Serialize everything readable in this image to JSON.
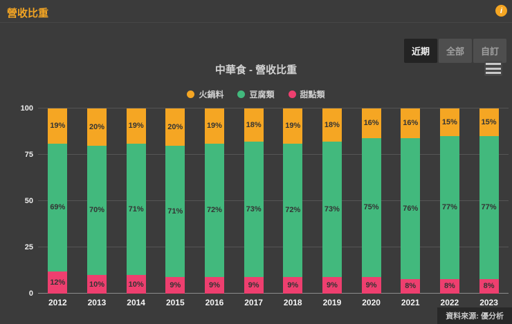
{
  "header": {
    "title": "營收比重",
    "info_glyph": "i"
  },
  "range_buttons": [
    {
      "label": "近期",
      "active": true
    },
    {
      "label": "全部",
      "active": false
    },
    {
      "label": "自訂",
      "active": false
    }
  ],
  "chart_data": {
    "type": "bar",
    "stacked": true,
    "title": "中華食 - 營收比重",
    "categories": [
      "2012",
      "2013",
      "2014",
      "2015",
      "2016",
      "2017",
      "2018",
      "2019",
      "2020",
      "2021",
      "2022",
      "2023"
    ],
    "series": [
      {
        "name": "甜點類",
        "color": "#ee3f6f",
        "values": [
          12,
          10,
          10,
          9,
          9,
          9,
          9,
          9,
          9,
          8,
          8,
          8
        ]
      },
      {
        "name": "豆腐類",
        "color": "#42b97d",
        "values": [
          69,
          70,
          71,
          71,
          72,
          73,
          72,
          73,
          75,
          76,
          77,
          77
        ]
      },
      {
        "name": "火鍋料",
        "color": "#f5a623",
        "values": [
          19,
          20,
          19,
          20,
          19,
          18,
          19,
          18,
          16,
          16,
          15,
          15
        ]
      }
    ],
    "legend_order": [
      "火鍋料",
      "豆腐類",
      "甜點類"
    ],
    "y_ticks": [
      0,
      25,
      50,
      75,
      100
    ],
    "ylim": [
      0,
      100
    ],
    "value_suffix": "%",
    "legend_position": "top",
    "grid": true
  },
  "footer": {
    "source": "資料來源: 優分析"
  }
}
